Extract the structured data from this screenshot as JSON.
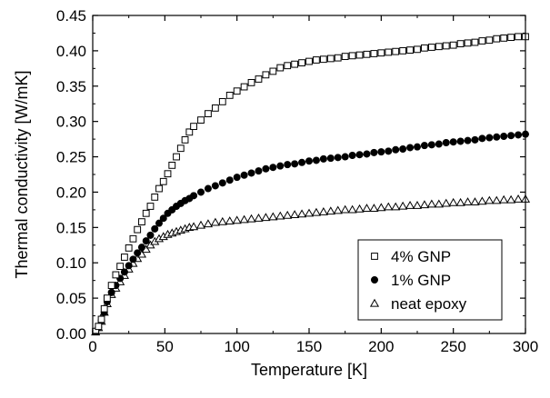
{
  "chart_data": {
    "type": "scatter",
    "title": "",
    "xlabel": "Temperature [K]",
    "ylabel": "Thermal conductivity [W/mK]",
    "xlim": [
      0,
      300
    ],
    "ylim": [
      0,
      0.45
    ],
    "xticks": [
      0,
      50,
      100,
      150,
      200,
      250,
      300
    ],
    "yticks": [
      0.0,
      0.05,
      0.1,
      0.15,
      0.2,
      0.25,
      0.3,
      0.35,
      0.4,
      0.45
    ],
    "xtick_labels": [
      "0",
      "50",
      "100",
      "150",
      "200",
      "250",
      "300"
    ],
    "ytick_labels": [
      "0.00",
      "0.05",
      "0.10",
      "0.15",
      "0.20",
      "0.25",
      "0.30",
      "0.35",
      "0.40",
      "0.45"
    ],
    "grid": false,
    "legend_position": "bottom-right",
    "series": [
      {
        "name": "4% GNP",
        "marker": "open-square",
        "color": "#000000",
        "x": [
          2,
          4,
          6,
          8,
          10,
          13,
          16,
          19,
          22,
          25,
          28,
          31,
          34,
          37,
          40,
          43,
          46,
          49,
          52,
          55,
          58,
          61,
          64,
          67,
          70,
          75,
          80,
          85,
          90,
          95,
          100,
          105,
          110,
          115,
          120,
          125,
          130,
          135,
          140,
          145,
          150,
          155,
          160,
          165,
          170,
          175,
          180,
          185,
          190,
          195,
          200,
          205,
          210,
          215,
          220,
          225,
          230,
          235,
          240,
          245,
          250,
          255,
          260,
          265,
          270,
          275,
          280,
          285,
          290,
          295,
          300
        ],
        "y": [
          0.003,
          0.01,
          0.02,
          0.035,
          0.05,
          0.068,
          0.083,
          0.095,
          0.108,
          0.121,
          0.134,
          0.147,
          0.158,
          0.17,
          0.18,
          0.193,
          0.205,
          0.215,
          0.226,
          0.238,
          0.25,
          0.262,
          0.274,
          0.285,
          0.293,
          0.302,
          0.311,
          0.319,
          0.328,
          0.337,
          0.343,
          0.349,
          0.355,
          0.36,
          0.366,
          0.371,
          0.376,
          0.379,
          0.381,
          0.383,
          0.385,
          0.387,
          0.388,
          0.389,
          0.39,
          0.392,
          0.393,
          0.394,
          0.395,
          0.396,
          0.397,
          0.398,
          0.399,
          0.4,
          0.401,
          0.402,
          0.404,
          0.405,
          0.406,
          0.407,
          0.408,
          0.41,
          0.411,
          0.412,
          0.414,
          0.415,
          0.417,
          0.418,
          0.419,
          0.42,
          0.42
        ]
      },
      {
        "name": "1% GNP",
        "marker": "filled-circle",
        "color": "#000000",
        "x": [
          2,
          4,
          6,
          8,
          10,
          13,
          16,
          19,
          22,
          25,
          28,
          31,
          34,
          37,
          40,
          43,
          46,
          49,
          52,
          55,
          58,
          61,
          64,
          67,
          70,
          75,
          80,
          85,
          90,
          95,
          100,
          105,
          110,
          115,
          120,
          125,
          130,
          135,
          140,
          145,
          150,
          155,
          160,
          165,
          170,
          175,
          180,
          185,
          190,
          195,
          200,
          205,
          210,
          215,
          220,
          225,
          230,
          235,
          240,
          245,
          250,
          255,
          260,
          265,
          270,
          275,
          280,
          285,
          290,
          295,
          300
        ],
        "y": [
          0.003,
          0.009,
          0.018,
          0.03,
          0.045,
          0.058,
          0.068,
          0.078,
          0.087,
          0.096,
          0.105,
          0.114,
          0.122,
          0.131,
          0.139,
          0.148,
          0.156,
          0.163,
          0.17,
          0.175,
          0.18,
          0.184,
          0.188,
          0.191,
          0.195,
          0.2,
          0.205,
          0.209,
          0.213,
          0.217,
          0.221,
          0.224,
          0.227,
          0.23,
          0.233,
          0.235,
          0.237,
          0.239,
          0.24,
          0.242,
          0.244,
          0.245,
          0.247,
          0.248,
          0.249,
          0.25,
          0.252,
          0.253,
          0.254,
          0.256,
          0.257,
          0.258,
          0.26,
          0.261,
          0.263,
          0.264,
          0.266,
          0.267,
          0.268,
          0.27,
          0.271,
          0.272,
          0.273,
          0.274,
          0.276,
          0.277,
          0.278,
          0.279,
          0.28,
          0.281,
          0.282
        ]
      },
      {
        "name": "neat epoxy",
        "marker": "open-triangle",
        "color": "#000000",
        "x": [
          2,
          4,
          6,
          8,
          10,
          13,
          16,
          19,
          22,
          25,
          28,
          31,
          34,
          37,
          40,
          43,
          46,
          49,
          52,
          55,
          58,
          61,
          64,
          67,
          70,
          75,
          80,
          85,
          90,
          95,
          100,
          105,
          110,
          115,
          120,
          125,
          130,
          135,
          140,
          145,
          150,
          155,
          160,
          165,
          170,
          175,
          180,
          185,
          190,
          195,
          200,
          205,
          210,
          215,
          220,
          225,
          230,
          235,
          240,
          245,
          250,
          255,
          260,
          265,
          270,
          275,
          280,
          285,
          290,
          295,
          300
        ],
        "y": [
          0.002,
          0.008,
          0.017,
          0.03,
          0.042,
          0.055,
          0.064,
          0.073,
          0.082,
          0.091,
          0.099,
          0.106,
          0.112,
          0.119,
          0.125,
          0.13,
          0.134,
          0.137,
          0.14,
          0.142,
          0.144,
          0.146,
          0.148,
          0.15,
          0.151,
          0.153,
          0.155,
          0.157,
          0.158,
          0.159,
          0.16,
          0.161,
          0.162,
          0.163,
          0.164,
          0.165,
          0.166,
          0.167,
          0.168,
          0.169,
          0.17,
          0.171,
          0.172,
          0.173,
          0.174,
          0.175,
          0.175,
          0.176,
          0.177,
          0.177,
          0.178,
          0.179,
          0.179,
          0.18,
          0.181,
          0.181,
          0.182,
          0.183,
          0.183,
          0.184,
          0.185,
          0.185,
          0.186,
          0.186,
          0.187,
          0.188,
          0.188,
          0.189,
          0.189,
          0.19,
          0.19
        ]
      }
    ]
  }
}
